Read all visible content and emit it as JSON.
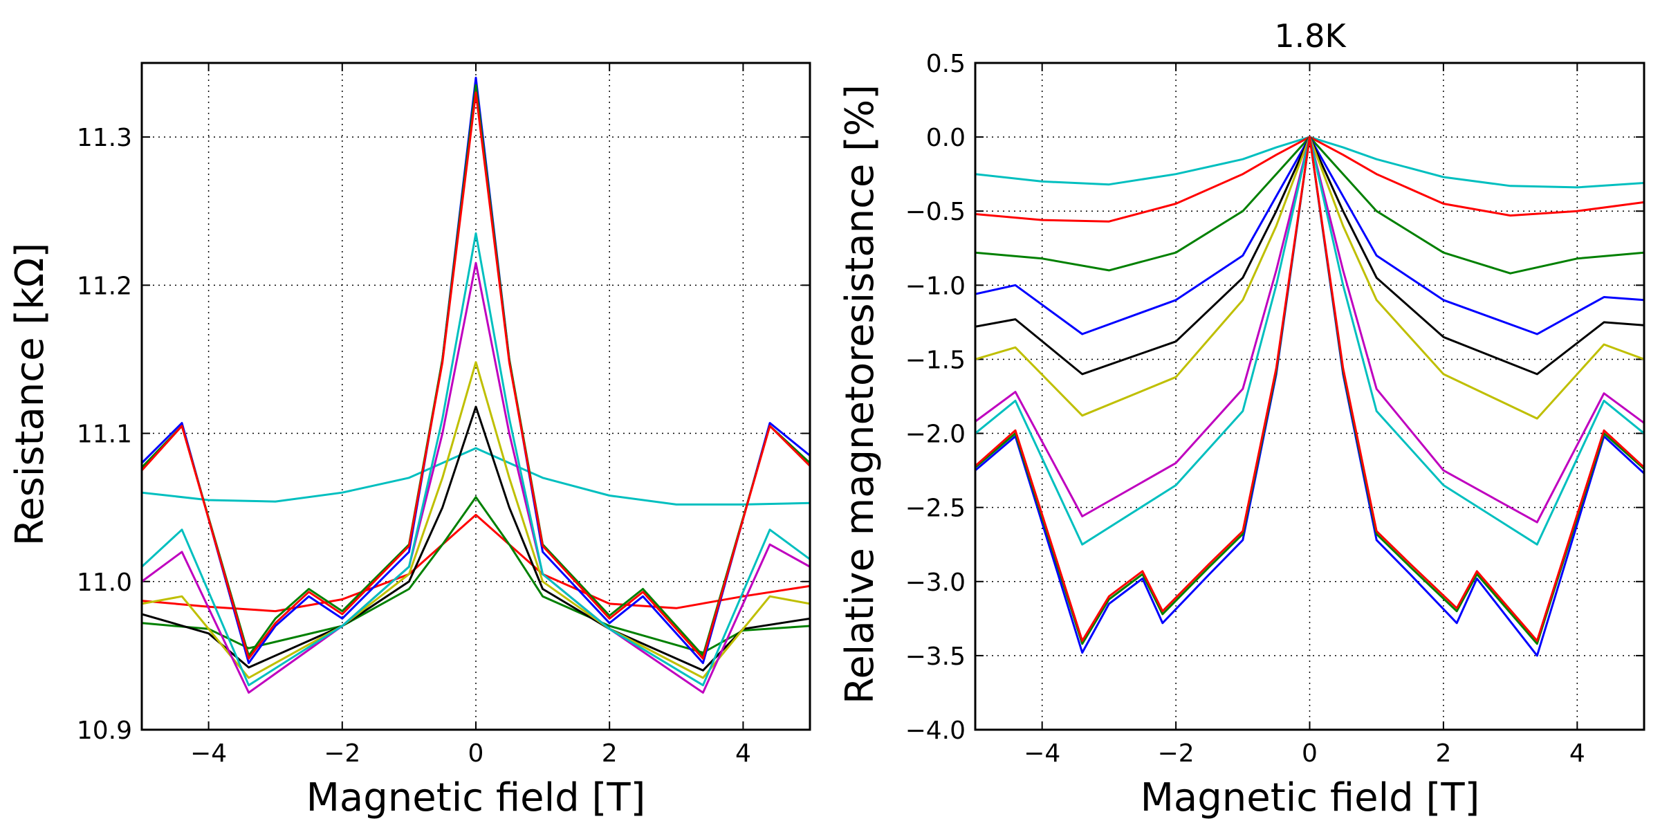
{
  "chart_data": [
    {
      "type": "line",
      "title": "",
      "xlabel": "Magnetic field [T]",
      "ylabel": "Resistance [kΩ]",
      "xlim": [
        -5,
        5
      ],
      "ylim": [
        10.9,
        11.35
      ],
      "xticks": [
        -4,
        -2,
        0,
        2,
        4
      ],
      "xtick_labels": [
        "−4",
        "−2",
        "0",
        "2",
        "4"
      ],
      "yticks": [
        10.9,
        11.0,
        11.1,
        11.2,
        11.3
      ],
      "ytick_labels": [
        "10.9",
        "11.0",
        "11.1",
        "11.2",
        "11.3"
      ],
      "grid": true,
      "series": [
        {
          "color": "#00bfbf",
          "x": [
            -5,
            -4,
            -3,
            -2,
            -1,
            -0.5,
            0,
            0.5,
            1,
            2,
            3,
            4,
            5
          ],
          "y": [
            11.06,
            11.055,
            11.054,
            11.06,
            11.07,
            11.08,
            11.09,
            11.08,
            11.07,
            11.058,
            11.052,
            11.052,
            11.053
          ]
        },
        {
          "color": "#ff0000",
          "x": [
            -5,
            -4,
            -3,
            -2,
            -1,
            -0.5,
            0,
            0.5,
            1,
            2,
            3,
            4,
            5
          ],
          "y": [
            10.987,
            10.983,
            10.98,
            10.988,
            11.005,
            11.025,
            11.045,
            11.025,
            11.005,
            10.985,
            10.982,
            10.99,
            10.997
          ]
        },
        {
          "color": "#008000",
          "x": [
            -5,
            -4,
            -3.4,
            -2,
            -1,
            -0.5,
            0,
            0.5,
            1,
            2,
            3.4,
            4,
            5
          ],
          "y": [
            10.972,
            10.968,
            10.955,
            10.97,
            10.995,
            11.025,
            11.057,
            11.025,
            10.99,
            10.97,
            10.952,
            10.967,
            10.97
          ]
        },
        {
          "color": "#000000",
          "x": [
            -5,
            -4,
            -3.4,
            -2,
            -1,
            -0.5,
            0,
            0.5,
            1,
            2,
            3.4,
            4,
            5
          ],
          "y": [
            10.978,
            10.965,
            10.942,
            10.97,
            11.0,
            11.05,
            11.118,
            11.05,
            10.995,
            10.968,
            10.94,
            10.968,
            10.975
          ]
        },
        {
          "color": "#bfbf00",
          "x": [
            -5,
            -4.4,
            -3.4,
            -2,
            -1,
            -0.5,
            0,
            0.5,
            1,
            2,
            3.4,
            4.4,
            5
          ],
          "y": [
            10.985,
            10.99,
            10.935,
            10.97,
            11.005,
            11.07,
            11.148,
            11.07,
            11.0,
            10.968,
            10.935,
            10.99,
            10.985
          ]
        },
        {
          "color": "#bf00bf",
          "x": [
            -5,
            -4.4,
            -3.4,
            -2,
            -1,
            -0.5,
            0,
            0.5,
            1,
            2,
            3.4,
            4.4,
            5
          ],
          "y": [
            11.0,
            11.02,
            10.925,
            10.97,
            11.01,
            11.1,
            11.215,
            11.1,
            11.005,
            10.968,
            10.925,
            11.025,
            11.01
          ]
        },
        {
          "color": "#00bfbf",
          "x": [
            -5,
            -4.4,
            -3.4,
            -2,
            -1,
            -0.5,
            0,
            0.5,
            1,
            2,
            3.4,
            4.4,
            5
          ],
          "y": [
            11.01,
            11.035,
            10.93,
            10.97,
            11.01,
            11.11,
            11.235,
            11.11,
            11.005,
            10.968,
            10.93,
            11.035,
            11.015
          ]
        },
        {
          "color": "#0000ff",
          "x": [
            -5,
            -4.4,
            -3.4,
            -3,
            -2.5,
            -2,
            -1,
            -0.5,
            0,
            0.5,
            1,
            2,
            2.5,
            3.4,
            4.4,
            5
          ],
          "y": [
            11.08,
            11.107,
            10.945,
            10.97,
            10.99,
            10.975,
            11.02,
            11.15,
            11.34,
            11.15,
            11.02,
            10.972,
            10.99,
            10.945,
            11.107,
            11.085
          ]
        },
        {
          "color": "#008000",
          "x": [
            -5,
            -4.4,
            -3.4,
            -3,
            -2.5,
            -2,
            -1,
            -0.5,
            0,
            0.5,
            1,
            2,
            2.5,
            3.4,
            4.4,
            5
          ],
          "y": [
            11.077,
            11.105,
            10.95,
            10.975,
            10.995,
            10.98,
            11.025,
            11.15,
            11.335,
            11.15,
            11.025,
            10.977,
            10.995,
            10.95,
            11.105,
            11.08
          ]
        },
        {
          "color": "#ff0000",
          "x": [
            -5,
            -4.4,
            -3.4,
            -3,
            -2.5,
            -2,
            -1,
            -0.5,
            0,
            0.5,
            1,
            2,
            2.5,
            3.4,
            4.4,
            5
          ],
          "y": [
            11.075,
            11.105,
            10.948,
            10.972,
            10.993,
            10.978,
            11.024,
            11.148,
            11.33,
            11.148,
            11.024,
            10.975,
            10.993,
            10.948,
            11.105,
            11.078
          ]
        }
      ]
    },
    {
      "type": "line",
      "title": "1.8K",
      "xlabel": "Magnetic field [T]",
      "ylabel": "Relative magnetoresistance [%]",
      "xlim": [
        -5,
        5
      ],
      "ylim": [
        -4.0,
        0.5
      ],
      "xticks": [
        -4,
        -2,
        0,
        2,
        4
      ],
      "xtick_labels": [
        "−4",
        "−2",
        "0",
        "2",
        "4"
      ],
      "yticks": [
        -4.0,
        -3.5,
        -3.0,
        -2.5,
        -2.0,
        -1.5,
        -1.0,
        -0.5,
        0.0,
        0.5
      ],
      "ytick_labels": [
        "−4.0",
        "−3.5",
        "−3.0",
        "−2.5",
        "−2.0",
        "−1.5",
        "−1.0",
        "−0.5",
        "0.0",
        "0.5"
      ],
      "grid": true,
      "series": [
        {
          "color": "#00bfbf",
          "x": [
            -5,
            -4,
            -3,
            -2,
            -1,
            -0.5,
            0,
            0.5,
            1,
            2,
            3,
            4,
            5
          ],
          "y": [
            -0.25,
            -0.3,
            -0.32,
            -0.25,
            -0.15,
            -0.07,
            0,
            -0.07,
            -0.15,
            -0.27,
            -0.33,
            -0.34,
            -0.31
          ]
        },
        {
          "color": "#ff0000",
          "x": [
            -5,
            -4,
            -3,
            -2,
            -1,
            -0.5,
            0,
            0.5,
            1,
            2,
            3,
            4,
            5
          ],
          "y": [
            -0.52,
            -0.56,
            -0.57,
            -0.45,
            -0.25,
            -0.12,
            0,
            -0.12,
            -0.25,
            -0.45,
            -0.53,
            -0.5,
            -0.44
          ]
        },
        {
          "color": "#008000",
          "x": [
            -5,
            -4,
            -3,
            -2,
            -1,
            -0.5,
            0,
            0.5,
            1,
            2,
            3,
            4,
            5
          ],
          "y": [
            -0.78,
            -0.82,
            -0.9,
            -0.78,
            -0.5,
            -0.25,
            0,
            -0.25,
            -0.5,
            -0.78,
            -0.92,
            -0.82,
            -0.78
          ]
        },
        {
          "color": "#0000ff",
          "x": [
            -5,
            -4.4,
            -3.4,
            -2,
            -1,
            -0.5,
            0,
            0.5,
            1,
            2,
            3.4,
            4.4,
            5
          ],
          "y": [
            -1.06,
            -1.0,
            -1.33,
            -1.1,
            -0.8,
            -0.4,
            0,
            -0.4,
            -0.8,
            -1.1,
            -1.33,
            -1.08,
            -1.1
          ]
        },
        {
          "color": "#000000",
          "x": [
            -5,
            -4.4,
            -3.4,
            -2,
            -1,
            -0.5,
            0,
            0.5,
            1,
            2,
            3.4,
            4.4,
            5
          ],
          "y": [
            -1.28,
            -1.23,
            -1.6,
            -1.38,
            -0.95,
            -0.5,
            0,
            -0.5,
            -0.95,
            -1.35,
            -1.6,
            -1.25,
            -1.27
          ]
        },
        {
          "color": "#bfbf00",
          "x": [
            -5,
            -4.4,
            -3.4,
            -2,
            -1,
            -0.5,
            0,
            0.5,
            1,
            2,
            3.4,
            4.4,
            5
          ],
          "y": [
            -1.5,
            -1.42,
            -1.88,
            -1.62,
            -1.1,
            -0.6,
            0,
            -0.6,
            -1.1,
            -1.6,
            -1.9,
            -1.4,
            -1.5
          ]
        },
        {
          "color": "#bf00bf",
          "x": [
            -5,
            -4.4,
            -3.4,
            -2,
            -1,
            -0.5,
            0,
            0.5,
            1,
            2,
            3.4,
            4.4,
            5
          ],
          "y": [
            -1.92,
            -1.72,
            -2.56,
            -2.2,
            -1.7,
            -0.9,
            0,
            -0.9,
            -1.7,
            -2.25,
            -2.6,
            -1.73,
            -1.93
          ]
        },
        {
          "color": "#00bfbf",
          "x": [
            -5,
            -4.4,
            -3.4,
            -2,
            -1,
            -0.5,
            0,
            0.5,
            1,
            2,
            3.4,
            4.4,
            5
          ],
          "y": [
            -2.0,
            -1.78,
            -2.75,
            -2.35,
            -1.85,
            -1.0,
            0,
            -1.0,
            -1.85,
            -2.35,
            -2.75,
            -1.78,
            -2.0
          ]
        },
        {
          "color": "#0000ff",
          "x": [
            -5,
            -4.4,
            -3.4,
            -3,
            -2.5,
            -2.2,
            -1.5,
            -1,
            -0.5,
            0,
            0.5,
            1,
            1.5,
            2.2,
            2.5,
            3.4,
            4.4,
            5
          ],
          "y": [
            -2.25,
            -2.02,
            -3.48,
            -3.15,
            -2.98,
            -3.28,
            -2.95,
            -2.72,
            -1.6,
            0,
            -1.6,
            -2.72,
            -2.95,
            -3.28,
            -2.98,
            -3.5,
            -2.02,
            -2.27
          ]
        },
        {
          "color": "#008000",
          "x": [
            -5,
            -4.4,
            -3.4,
            -3,
            -2.5,
            -2.2,
            -1.5,
            -1,
            -0.5,
            0,
            0.5,
            1,
            1.5,
            2.2,
            2.5,
            3.4,
            4.4,
            5
          ],
          "y": [
            -2.23,
            -2.0,
            -3.42,
            -3.12,
            -2.95,
            -3.22,
            -2.9,
            -2.68,
            -1.58,
            0,
            -1.58,
            -2.68,
            -2.9,
            -3.2,
            -2.95,
            -3.42,
            -2.0,
            -2.24
          ]
        },
        {
          "color": "#ff0000",
          "x": [
            -5,
            -4.4,
            -3.4,
            -3,
            -2.5,
            -2.2,
            -1.5,
            -1,
            -0.5,
            0,
            0.5,
            1,
            1.5,
            2.2,
            2.5,
            3.4,
            4.4,
            5
          ],
          "y": [
            -2.22,
            -1.98,
            -3.4,
            -3.1,
            -2.93,
            -3.2,
            -2.88,
            -2.66,
            -1.56,
            0,
            -1.56,
            -2.66,
            -2.88,
            -3.18,
            -2.93,
            -3.4,
            -1.98,
            -2.23
          ]
        }
      ]
    }
  ]
}
